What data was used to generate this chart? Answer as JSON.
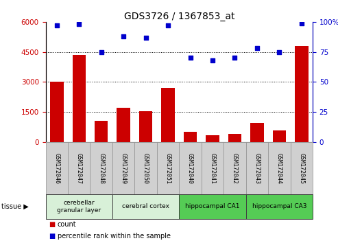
{
  "title": "GDS3726 / 1367853_at",
  "samples": [
    "GSM172046",
    "GSM172047",
    "GSM172048",
    "GSM172049",
    "GSM172050",
    "GSM172051",
    "GSM172040",
    "GSM172041",
    "GSM172042",
    "GSM172043",
    "GSM172044",
    "GSM172045"
  ],
  "counts": [
    3000,
    4350,
    1050,
    1700,
    1550,
    2700,
    500,
    350,
    430,
    950,
    600,
    4800
  ],
  "percentiles": [
    97,
    98,
    75,
    88,
    87,
    97,
    70,
    68,
    70,
    78,
    75,
    99
  ],
  "bar_color": "#cc0000",
  "dot_color": "#0000cc",
  "ylim_left": [
    0,
    6000
  ],
  "ylim_right": [
    0,
    100
  ],
  "yticks_left": [
    0,
    1500,
    3000,
    4500,
    6000
  ],
  "yticks_right": [
    0,
    25,
    50,
    75,
    100
  ],
  "grid_lines": [
    1500,
    3000,
    4500
  ],
  "tissue_groups": [
    {
      "label": "cerebellar\ngranular layer",
      "start": 0,
      "end": 3,
      "color": "#d8f0d8"
    },
    {
      "label": "cerebral cortex",
      "start": 3,
      "end": 6,
      "color": "#d8f0d8"
    },
    {
      "label": "hippocampal CA1",
      "start": 6,
      "end": 9,
      "color": "#55cc55"
    },
    {
      "label": "hippocampal CA3",
      "start": 9,
      "end": 12,
      "color": "#55cc55"
    }
  ],
  "legend_count_color": "#cc0000",
  "legend_dot_color": "#0000cc",
  "xtick_bg": "#d0d0d0",
  "xtick_border": "#909090"
}
